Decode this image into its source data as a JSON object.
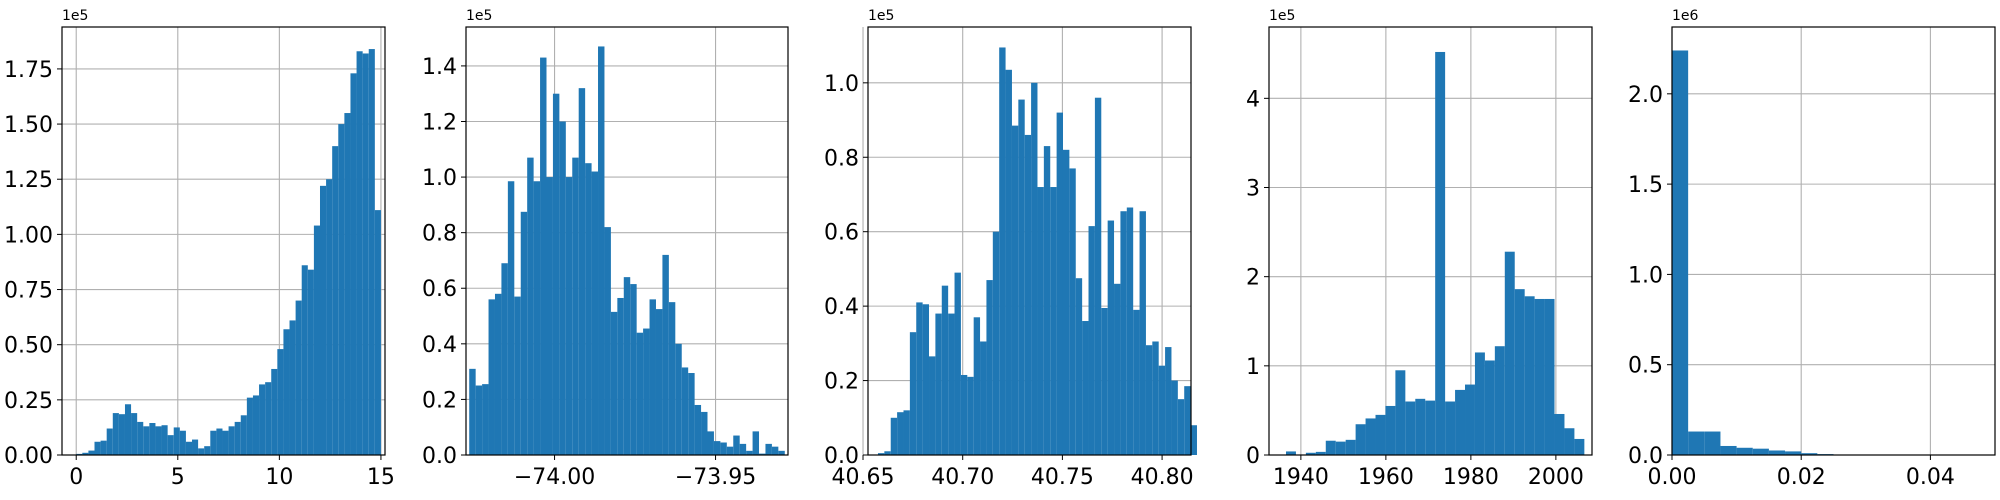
{
  "chart_data": [
    {
      "type": "bar",
      "subtype": "histogram",
      "offset_text": "1e5",
      "scale": 100000,
      "x_start": 0.0,
      "bin_width": 0.3,
      "values": [
        0.005,
        0.01,
        0.02,
        0.06,
        0.065,
        0.12,
        0.19,
        0.185,
        0.23,
        0.19,
        0.15,
        0.13,
        0.145,
        0.13,
        0.135,
        0.09,
        0.125,
        0.11,
        0.06,
        0.07,
        0.03,
        0.04,
        0.11,
        0.12,
        0.11,
        0.13,
        0.15,
        0.18,
        0.26,
        0.27,
        0.32,
        0.33,
        0.39,
        0.48,
        0.57,
        0.61,
        0.7,
        0.86,
        0.84,
        1.04,
        1.22,
        1.25,
        1.4,
        1.5,
        1.55,
        1.73,
        1.83,
        1.82,
        1.84,
        1.11
      ],
      "xlim": [
        -0.7,
        15.2
      ],
      "ylim": [
        0,
        1.94
      ],
      "xticks": [
        0,
        5,
        10,
        15
      ],
      "xtick_labels": [
        "0",
        "5",
        "10",
        "15"
      ],
      "yticks": [
        0,
        0.25,
        0.5,
        0.75,
        1.0,
        1.25,
        1.5,
        1.75
      ],
      "ytick_labels": [
        "0.00",
        "0.25",
        "0.50",
        "0.75",
        "1.00",
        "1.25",
        "1.50",
        "1.75"
      ],
      "grid": true,
      "color": "#1f77b4"
    },
    {
      "type": "bar",
      "subtype": "histogram",
      "offset_text": "1e5",
      "scale": 100000,
      "x_start": -74.0265,
      "bin_width": 0.002,
      "values": [
        0.31,
        0.25,
        0.255,
        0.56,
        0.58,
        0.69,
        0.985,
        0.57,
        0.875,
        1.07,
        0.985,
        1.43,
        1.0,
        1.3,
        1.2,
        1.0,
        1.07,
        1.32,
        1.05,
        1.02,
        1.47,
        0.82,
        0.515,
        0.565,
        0.64,
        0.615,
        0.44,
        0.455,
        0.56,
        0.525,
        0.72,
        0.55,
        0.4,
        0.315,
        0.295,
        0.18,
        0.155,
        0.085,
        0.05,
        0.045,
        0.03,
        0.07,
        0.04,
        0.015,
        0.085,
        0.005,
        0.04,
        0.03,
        0.015
      ],
      "xlim": [
        -74.0275,
        -73.9275
      ],
      "ylim": [
        0,
        1.54
      ],
      "xticks": [
        -74.0,
        -73.95
      ],
      "xtick_labels": [
        "−74.00",
        "−73.95"
      ],
      "yticks": [
        0,
        0.2,
        0.4,
        0.6,
        0.8,
        1.0,
        1.2,
        1.4
      ],
      "ytick_labels": [
        "0.0",
        "0.2",
        "0.4",
        "0.6",
        "0.8",
        "1.0",
        "1.2",
        "1.4"
      ],
      "grid": true,
      "color": "#1f77b4"
    },
    {
      "type": "bar",
      "subtype": "histogram",
      "offset_text": "1e5",
      "scale": 100000,
      "x_start": 40.6575,
      "bin_width": 0.0032,
      "values": [
        0.005,
        0.01,
        0.1,
        0.115,
        0.12,
        0.33,
        0.41,
        0.405,
        0.265,
        0.38,
        0.455,
        0.38,
        0.49,
        0.215,
        0.21,
        0.37,
        0.305,
        0.47,
        0.6,
        1.095,
        1.035,
        0.885,
        0.955,
        0.86,
        1.0,
        0.72,
        0.83,
        0.72,
        0.92,
        0.82,
        0.77,
        0.475,
        0.36,
        0.615,
        0.96,
        0.395,
        0.63,
        0.46,
        0.655,
        0.665,
        0.39,
        0.655,
        0.295,
        0.305,
        0.24,
        0.29,
        0.2,
        0.15,
        0.185,
        0.08
      ],
      "xlim": [
        40.6525,
        40.8145
      ],
      "ylim": [
        0,
        1.15
      ],
      "xticks": [
        40.65,
        40.7,
        40.75,
        40.8
      ],
      "xtick_labels": [
        "40.65",
        "40.70",
        "40.75",
        "40.80"
      ],
      "yticks": [
        0,
        0.2,
        0.4,
        0.6,
        0.8,
        1.0
      ],
      "ytick_labels": [
        "0.0",
        "0.2",
        "0.4",
        "0.6",
        "0.8",
        "1.0"
      ],
      "grid": true,
      "color": "#1f77b4"
    },
    {
      "type": "bar",
      "subtype": "histogram",
      "offset_text": "1e5",
      "scale": 100000,
      "x_start": 1936.5,
      "bin_width": 2.34,
      "values": [
        0.04,
        0.0,
        0.025,
        0.035,
        0.16,
        0.15,
        0.17,
        0.345,
        0.41,
        0.45,
        0.55,
        0.95,
        0.6,
        0.63,
        0.61,
        4.52,
        0.6,
        0.73,
        0.79,
        1.15,
        1.06,
        1.22,
        2.28,
        1.86,
        1.78,
        1.75,
        1.75,
        0.46,
        0.3,
        0.18
      ],
      "xlim": [
        1932.5,
        2008.5
      ],
      "ylim": [
        0,
        4.8
      ],
      "xticks": [
        1940,
        1960,
        1980,
        2000
      ],
      "xtick_labels": [
        "1940",
        "1960",
        "1980",
        "2000"
      ],
      "yticks": [
        0,
        1,
        2,
        3,
        4
      ],
      "ytick_labels": [
        "0",
        "1",
        "2",
        "3",
        "4"
      ],
      "grid": true,
      "color": "#1f77b4"
    },
    {
      "type": "bar",
      "subtype": "histogram",
      "offset_text": "1e6",
      "scale": 1000000,
      "x_start": 0.0,
      "bin_width": 0.0025,
      "values": [
        2.24,
        0.13,
        0.13,
        0.05,
        0.04,
        0.035,
        0.025,
        0.02,
        0.01,
        0.005,
        0.0,
        0.0,
        0.0,
        0.0,
        0.0,
        0.0,
        0.0,
        0.0,
        0.0,
        0.0
      ],
      "xlim": [
        0.0,
        0.05
      ],
      "ylim": [
        0,
        2.37
      ],
      "xticks": [
        0.0,
        0.02,
        0.04
      ],
      "xtick_labels": [
        "0.00",
        "0.02",
        "0.04"
      ],
      "yticks": [
        0,
        0.5,
        1.0,
        1.5,
        2.0
      ],
      "ytick_labels": [
        "0.0",
        "0.5",
        "1.0",
        "1.5",
        "2.0"
      ],
      "grid": true,
      "color": "#1f77b4"
    }
  ]
}
